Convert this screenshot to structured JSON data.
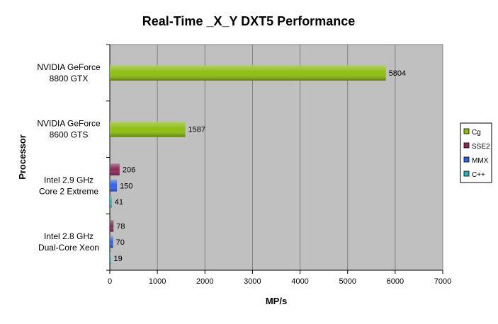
{
  "chart_data": {
    "type": "bar",
    "orientation": "horizontal",
    "title": "Real-Time _X_Y DXT5 Performance",
    "xlabel": "MP/s",
    "ylabel": "Processor",
    "xlim": [
      0,
      7000
    ],
    "xticks": [
      0,
      1000,
      2000,
      3000,
      4000,
      5000,
      6000,
      7000
    ],
    "grid": true,
    "legend_position": "right",
    "categories": [
      "NVIDIA GeForce\n8800 GTX",
      "NVIDIA GeForce\n8600 GTS",
      "Intel 2.9 GHz\nCore 2 Extreme",
      "Intel 2.8 GHz\nDual-Core Xeon"
    ],
    "series": [
      {
        "name": "Cg",
        "color": "#8fbf10",
        "values": [
          5804,
          1587,
          null,
          null
        ]
      },
      {
        "name": "SSE2",
        "color": "#8b2b5a",
        "values": [
          null,
          null,
          206,
          78
        ]
      },
      {
        "name": "MMX",
        "color": "#2f62e8",
        "values": [
          null,
          null,
          150,
          70
        ]
      },
      {
        "name": "C++",
        "color": "#2bb3b8",
        "values": [
          null,
          null,
          41,
          19
        ]
      }
    ],
    "plot_background": "#c0c0c0"
  }
}
